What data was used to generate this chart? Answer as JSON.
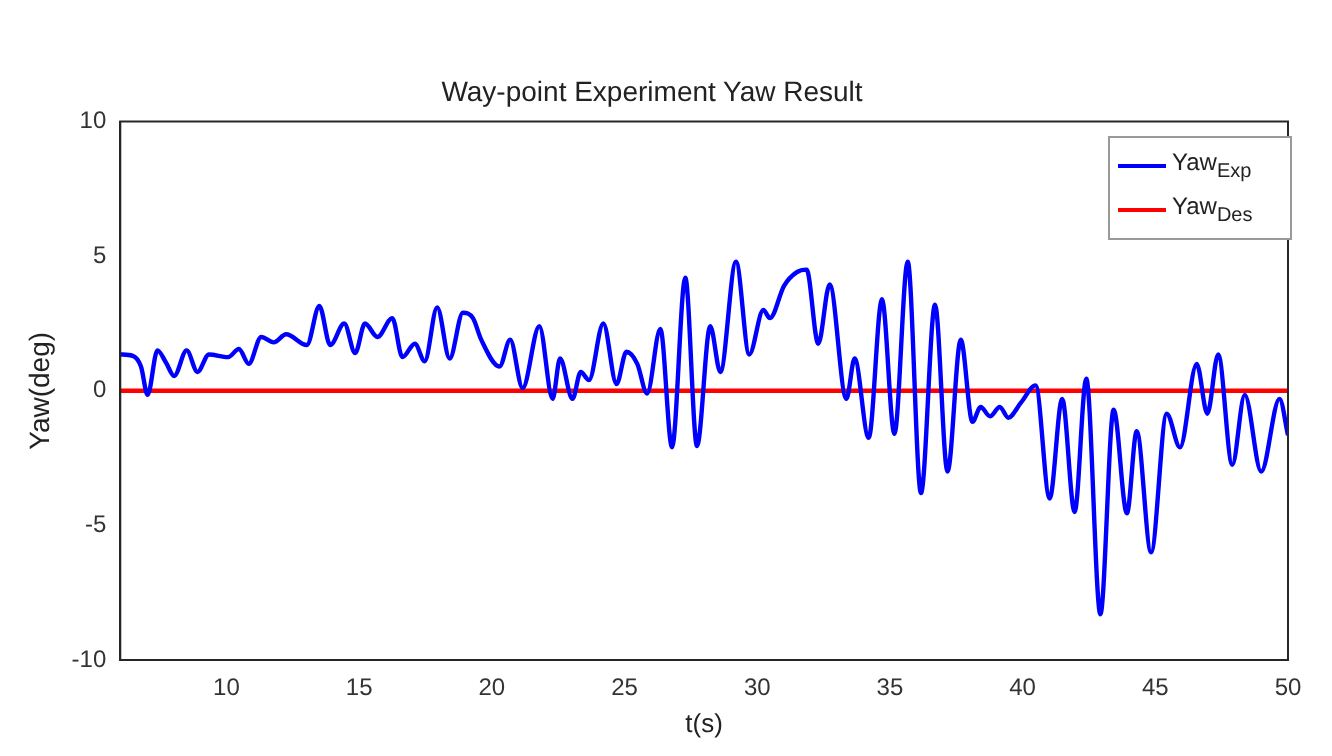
{
  "chart_data": {
    "type": "line",
    "title": "Way-point Experiment Yaw Result",
    "xlabel": "t(s)",
    "ylabel": "Yaw(deg)",
    "xlim": [
      6,
      50
    ],
    "xticks": [
      10,
      15,
      20,
      25,
      30,
      35,
      40,
      45,
      50
    ],
    "ylim": [
      -10,
      10
    ],
    "yticks": [
      -10,
      -5,
      0,
      5,
      10
    ],
    "grid": false,
    "legend": "top right",
    "marker": "none",
    "line_style": "solid",
    "series": [
      {
        "name": "Yaw$_{Exp}$",
        "color": "#0000ff",
        "x": [
          6.0,
          6.47,
          6.78,
          7.03,
          7.4,
          7.72,
          8.03,
          8.5,
          8.91,
          9.34,
          10.06,
          10.47,
          10.84,
          11.31,
          11.78,
          12.25,
          13.03,
          13.5,
          13.91,
          14.44,
          14.85,
          15.22,
          15.69,
          16.25,
          16.63,
          17.1,
          17.47,
          17.94,
          18.41,
          18.91,
          19.29,
          19.6,
          20.29,
          20.69,
          21.16,
          21.79,
          22.29,
          22.57,
          23.04,
          23.35,
          23.66,
          24.2,
          24.7,
          25.07,
          25.48,
          25.85,
          26.35,
          26.79,
          27.29,
          27.73,
          28.23,
          28.61,
          29.2,
          29.7,
          30.23,
          30.48,
          31.01,
          31.48,
          31.86,
          32.3,
          32.73,
          33.36,
          33.67,
          34.2,
          34.7,
          35.17,
          35.67,
          36.17,
          36.7,
          37.17,
          37.67,
          38.11,
          38.42,
          38.77,
          39.14,
          39.46,
          39.93,
          40.49,
          41.02,
          41.49,
          41.96,
          42.4,
          42.93,
          43.43,
          43.93,
          44.3,
          44.84,
          45.43,
          45.93,
          46.56,
          46.96,
          47.37,
          47.9,
          48.37,
          48.99,
          49.68,
          50.0
        ],
        "values": [
          1.35,
          1.3,
          0.9,
          -0.15,
          1.5,
          1.05,
          0.55,
          1.5,
          0.7,
          1.35,
          1.25,
          1.55,
          1.0,
          2.0,
          1.8,
          2.1,
          1.7,
          3.15,
          1.7,
          2.5,
          1.4,
          2.5,
          2.0,
          2.7,
          1.25,
          1.75,
          1.1,
          3.1,
          1.2,
          2.9,
          2.7,
          1.9,
          0.9,
          1.9,
          0.1,
          2.4,
          -0.3,
          1.2,
          -0.3,
          0.7,
          0.4,
          2.5,
          0.25,
          1.45,
          1.0,
          -0.1,
          2.3,
          -2.1,
          4.2,
          -2.05,
          2.4,
          0.7,
          4.8,
          1.35,
          3.0,
          2.7,
          3.9,
          4.4,
          4.5,
          1.75,
          3.95,
          -0.3,
          1.2,
          -1.75,
          3.4,
          -1.6,
          4.8,
          -3.8,
          3.2,
          -3.0,
          1.9,
          -1.15,
          -0.6,
          -0.95,
          -0.6,
          -1.0,
          -0.45,
          0.2,
          -4.0,
          -0.3,
          -4.5,
          0.45,
          -8.3,
          -0.7,
          -4.55,
          -1.5,
          -6.0,
          -0.85,
          -2.1,
          1.0,
          -0.85,
          1.35,
          -2.75,
          -0.15,
          -3.0,
          -0.3,
          -1.65
        ]
      },
      {
        "name": "Yaw$_{Des}$",
        "color": "#ff0000",
        "x": [
          6,
          50
        ],
        "values": [
          0,
          0
        ]
      }
    ]
  }
}
